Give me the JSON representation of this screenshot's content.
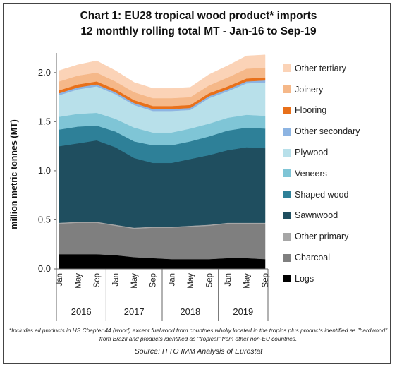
{
  "chart_data": {
    "type": "area",
    "stacked": true,
    "title": "Chart 1: EU28 tropical wood product* imports",
    "subtitle": "12 monthly rolling total MT - Jan-16 to Sep-19",
    "ylabel": "million metric tonnes (MT)",
    "xlabel": "",
    "ylim": [
      0,
      2.2
    ],
    "yticks": [
      "0.0",
      "0.5",
      "1.0",
      "1.5",
      "2.0"
    ],
    "grid": false,
    "legend_position": "right",
    "x": [
      "Jan-16",
      "May-16",
      "Sep-16",
      "Jan-17",
      "May-17",
      "Sep-17",
      "Jan-18",
      "May-18",
      "Sep-18",
      "Jan-19",
      "May-19",
      "Sep-19"
    ],
    "x_tick_labels": [
      "Jan",
      "May",
      "Sep",
      "Jan",
      "May",
      "Sep",
      "Jan",
      "May",
      "Sep",
      "Jan",
      "May",
      "Sep"
    ],
    "year_labels": [
      "2016",
      "2017",
      "2018",
      "2019"
    ],
    "series": [
      {
        "name": "Logs",
        "color": "#000000",
        "values": [
          0.15,
          0.15,
          0.15,
          0.14,
          0.12,
          0.11,
          0.1,
          0.1,
          0.1,
          0.11,
          0.11,
          0.1
        ]
      },
      {
        "name": "Charcoal",
        "color": "#7f7f7f",
        "values": [
          0.31,
          0.32,
          0.32,
          0.3,
          0.29,
          0.31,
          0.32,
          0.33,
          0.34,
          0.35,
          0.35,
          0.36
        ]
      },
      {
        "name": "Other primary",
        "color": "#a6a6a6",
        "values": [
          0.01,
          0.01,
          0.01,
          0.01,
          0.01,
          0.01,
          0.01,
          0.01,
          0.01,
          0.01,
          0.01,
          0.01
        ]
      },
      {
        "name": "Sawnwood",
        "color": "#1f4e5f",
        "values": [
          0.78,
          0.8,
          0.83,
          0.79,
          0.71,
          0.65,
          0.65,
          0.68,
          0.71,
          0.74,
          0.77,
          0.76
        ]
      },
      {
        "name": "Shaped wood",
        "color": "#2e8098",
        "values": [
          0.17,
          0.17,
          0.15,
          0.16,
          0.17,
          0.18,
          0.18,
          0.18,
          0.19,
          0.2,
          0.2,
          0.2
        ]
      },
      {
        "name": "Veneers",
        "color": "#7fc5d6",
        "values": [
          0.13,
          0.13,
          0.13,
          0.13,
          0.14,
          0.13,
          0.13,
          0.13,
          0.13,
          0.13,
          0.13,
          0.13
        ]
      },
      {
        "name": "Plywood",
        "color": "#b8e0ea",
        "values": [
          0.22,
          0.25,
          0.27,
          0.25,
          0.23,
          0.22,
          0.22,
          0.19,
          0.26,
          0.27,
          0.32,
          0.34
        ]
      },
      {
        "name": "Other secondary",
        "color": "#8db4e2",
        "values": [
          0.02,
          0.02,
          0.02,
          0.02,
          0.02,
          0.02,
          0.02,
          0.02,
          0.02,
          0.02,
          0.02,
          0.02
        ]
      },
      {
        "name": "Flooring",
        "color": "#e8701a",
        "values": [
          0.03,
          0.03,
          0.03,
          0.03,
          0.03,
          0.03,
          0.03,
          0.03,
          0.03,
          0.03,
          0.03,
          0.03
        ]
      },
      {
        "name": "Joinery",
        "color": "#f5b889",
        "values": [
          0.09,
          0.09,
          0.09,
          0.08,
          0.08,
          0.08,
          0.08,
          0.08,
          0.08,
          0.09,
          0.1,
          0.1
        ]
      },
      {
        "name": "Other tertiary",
        "color": "#fbd3b7",
        "values": [
          0.11,
          0.11,
          0.12,
          0.11,
          0.1,
          0.1,
          0.1,
          0.1,
          0.11,
          0.12,
          0.13,
          0.13
        ]
      }
    ],
    "footnote": "*Includes all products in HS Chapter 44 (wood) except fuelwood from countries wholly located in the tropics plus products identified as \"hardwood\" from Brazil and products identified as \"tropical\" from other non-EU countries.",
    "source": "Source: ITTO IMM Analysis of Eurostat"
  }
}
